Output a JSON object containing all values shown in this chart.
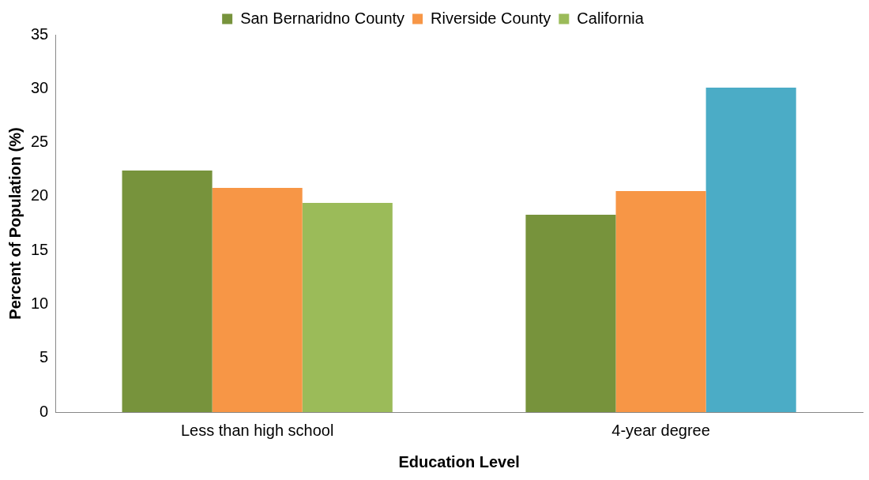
{
  "chart_data": {
    "type": "bar",
    "xlabel": "Education Level",
    "ylabel": "Percent of Population (%)",
    "categories": [
      "Less than high school",
      "4-year degree"
    ],
    "series": [
      {
        "name": "San Bernaridno County",
        "color": "#77933c",
        "values": [
          22.4,
          18.3
        ]
      },
      {
        "name": "Riverside County",
        "color": "#f79646",
        "values": [
          20.8,
          20.5
        ]
      },
      {
        "name": "California",
        "color": "#9bbb59",
        "colors": [
          "#9bbb59",
          "#4bacc6"
        ],
        "values": [
          19.4,
          30.1
        ]
      }
    ],
    "ylim": [
      0,
      35
    ],
    "yticks": [
      0,
      5,
      10,
      15,
      20,
      25,
      30,
      35
    ],
    "grid": false,
    "legend": "top"
  }
}
